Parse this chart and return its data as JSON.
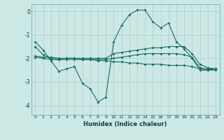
{
  "title": "",
  "xlabel": "Humidex (Indice chaleur)",
  "ylabel": "",
  "bg_color": "#cce8e5",
  "line_color": "#1a6e65",
  "grid_color": "#aacfcc",
  "xlim": [
    -0.5,
    23.5
  ],
  "ylim": [
    -4.4,
    0.3
  ],
  "xticks": [
    0,
    1,
    2,
    3,
    4,
    5,
    6,
    7,
    8,
    9,
    10,
    11,
    12,
    13,
    14,
    15,
    16,
    17,
    18,
    19,
    20,
    21,
    22,
    23
  ],
  "yticks": [
    0,
    -1,
    -2,
    -3,
    -4
  ],
  "line1_x": [
    0,
    1,
    2,
    3,
    4,
    5,
    6,
    7,
    8,
    9,
    10,
    11,
    12,
    13,
    14,
    15,
    16,
    17,
    18,
    19,
    20,
    21,
    22,
    23
  ],
  "line1_y": [
    -1.3,
    -1.65,
    -2.1,
    -2.55,
    -2.45,
    -2.35,
    -3.05,
    -3.3,
    -3.85,
    -3.65,
    -1.3,
    -0.6,
    -0.15,
    0.05,
    0.05,
    -0.45,
    -0.7,
    -0.5,
    -1.3,
    -1.6,
    -2.0,
    -2.5,
    -2.5,
    -2.45
  ],
  "line2_x": [
    0,
    1,
    2,
    3,
    4,
    5,
    6,
    7,
    8,
    9,
    10,
    11,
    12,
    13,
    14,
    15,
    16,
    17,
    18,
    19,
    20,
    21,
    22,
    23
  ],
  "line2_y": [
    -1.5,
    -1.85,
    -2.0,
    -2.05,
    -2.0,
    -2.0,
    -2.0,
    -2.0,
    -2.0,
    -2.0,
    -1.8,
    -1.75,
    -1.7,
    -1.65,
    -1.6,
    -1.55,
    -1.55,
    -1.5,
    -1.5,
    -1.5,
    -1.8,
    -2.25,
    -2.4,
    -2.45
  ],
  "line3_x": [
    0,
    1,
    2,
    3,
    4,
    5,
    6,
    7,
    8,
    9,
    10,
    11,
    12,
    13,
    14,
    15,
    16,
    17,
    18,
    19,
    20,
    21,
    22,
    23
  ],
  "line3_y": [
    -1.9,
    -1.95,
    -1.95,
    -2.0,
    -2.0,
    -2.0,
    -2.05,
    -2.05,
    -2.05,
    -2.05,
    -2.0,
    -1.95,
    -1.9,
    -1.85,
    -1.8,
    -1.8,
    -1.8,
    -1.8,
    -1.8,
    -1.85,
    -1.95,
    -2.4,
    -2.45,
    -2.45
  ],
  "line4_x": [
    0,
    1,
    2,
    3,
    4,
    5,
    6,
    7,
    8,
    9,
    10,
    11,
    12,
    13,
    14,
    15,
    16,
    17,
    18,
    19,
    20,
    21,
    22,
    23
  ],
  "line4_y": [
    -1.95,
    -2.0,
    -2.05,
    -2.05,
    -2.05,
    -2.05,
    -2.05,
    -2.05,
    -2.1,
    -2.1,
    -2.15,
    -2.15,
    -2.2,
    -2.2,
    -2.25,
    -2.25,
    -2.25,
    -2.3,
    -2.3,
    -2.3,
    -2.35,
    -2.45,
    -2.5,
    -2.5
  ]
}
